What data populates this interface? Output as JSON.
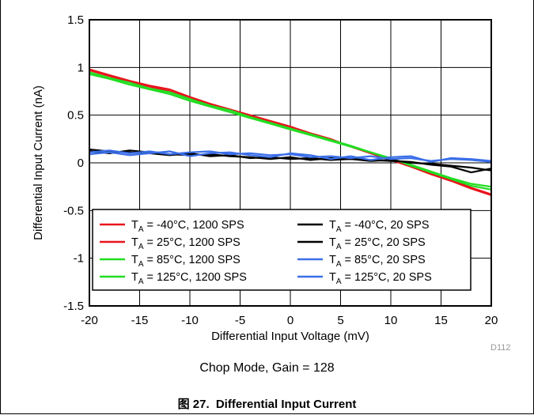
{
  "figure": {
    "caption": "Chop Mode, Gain = 128",
    "label": "图 27.",
    "title": "Differential Input Current",
    "id_tag": "D112"
  },
  "chart_data": {
    "type": "line",
    "title": "",
    "xlabel": "Differential Input Voltage (mV)",
    "ylabel": "Differential Input Current (nA)",
    "xlim": [
      -20,
      20
    ],
    "ylim": [
      -1.5,
      1.5
    ],
    "xticks": [
      -20,
      -15,
      -10,
      -5,
      0,
      5,
      10,
      15,
      20
    ],
    "yticks": [
      -1.5,
      -1,
      -0.5,
      0,
      0.5,
      1,
      1.5
    ],
    "xtick_labels": [
      "-20",
      "-15",
      "-10",
      "-5",
      "0",
      "5",
      "10",
      "15",
      "20"
    ],
    "ytick_labels": [
      "-1.5",
      "-1",
      "-0.5",
      "0",
      "0.5",
      "1",
      "1.5"
    ],
    "grid": true,
    "legend_position": "bottom-center",
    "x": [
      -20,
      -18,
      -16,
      -14,
      -12,
      -10,
      -8,
      -6,
      -4,
      -2,
      0,
      2,
      4,
      6,
      8,
      10,
      12,
      14,
      16,
      18,
      20
    ],
    "series": [
      {
        "name_prefix": "T",
        "name_sub": "A",
        "name_rest": " = -40°C, 1200 SPS",
        "color": "#e8141c",
        "values": [
          0.98,
          0.92,
          0.86,
          0.81,
          0.77,
          0.69,
          0.62,
          0.56,
          0.5,
          0.44,
          0.38,
          0.31,
          0.25,
          0.17,
          0.11,
          0.04,
          -0.03,
          -0.11,
          -0.18,
          -0.26,
          -0.33
        ]
      },
      {
        "name_prefix": "T",
        "name_sub": "A",
        "name_rest": " = 25°C, 1200 SPS",
        "color": "#e8141c",
        "values": [
          0.97,
          0.91,
          0.85,
          0.8,
          0.75,
          0.68,
          0.61,
          0.55,
          0.49,
          0.43,
          0.37,
          0.3,
          0.24,
          0.17,
          0.1,
          0.03,
          -0.04,
          -0.12,
          -0.19,
          -0.27,
          -0.34
        ]
      },
      {
        "name_prefix": "T",
        "name_sub": "A",
        "name_rest": " = 85°C, 1200 SPS",
        "color": "#22dd22",
        "values": [
          0.95,
          0.89,
          0.84,
          0.78,
          0.74,
          0.67,
          0.6,
          0.55,
          0.48,
          0.42,
          0.36,
          0.3,
          0.24,
          0.18,
          0.11,
          0.05,
          -0.03,
          -0.1,
          -0.17,
          -0.24,
          -0.28
        ]
      },
      {
        "name_prefix": "T",
        "name_sub": "A",
        "name_rest": " = 125°C, 1200 SPS",
        "color": "#22dd22",
        "values": [
          0.93,
          0.88,
          0.82,
          0.77,
          0.72,
          0.65,
          0.59,
          0.53,
          0.47,
          0.41,
          0.35,
          0.29,
          0.23,
          0.17,
          0.11,
          0.04,
          -0.02,
          -0.09,
          -0.16,
          -0.22,
          -0.25
        ]
      },
      {
        "name_prefix": "T",
        "name_sub": "A",
        "name_rest": " = -40°C, 20 SPS",
        "color": "#000000",
        "values": [
          0.12,
          0.1,
          0.13,
          0.11,
          0.09,
          0.08,
          0.09,
          0.07,
          0.06,
          0.04,
          0.06,
          0.03,
          0.05,
          0.04,
          0.03,
          0.02,
          0.01,
          -0.02,
          -0.04,
          -0.1,
          -0.06
        ]
      },
      {
        "name_prefix": "T",
        "name_sub": "A",
        "name_rest": " = 25°C, 20 SPS",
        "color": "#000000",
        "values": [
          0.14,
          0.12,
          0.11,
          0.1,
          0.08,
          0.1,
          0.07,
          0.08,
          0.05,
          0.06,
          0.04,
          0.05,
          0.03,
          0.04,
          0.02,
          0.03,
          0.0,
          -0.01,
          -0.03,
          -0.05,
          -0.08
        ]
      },
      {
        "name_prefix": "T",
        "name_sub": "A",
        "name_rest": " = 85°C, 20 SPS",
        "color": "#3b6fe8",
        "values": [
          0.11,
          0.13,
          0.1,
          0.12,
          0.09,
          0.11,
          0.12,
          0.09,
          0.1,
          0.08,
          0.09,
          0.06,
          0.07,
          0.05,
          0.07,
          0.04,
          0.05,
          0.02,
          0.04,
          0.03,
          0.01
        ]
      },
      {
        "name_prefix": "T",
        "name_sub": "A",
        "name_rest": " = 125°C, 20 SPS",
        "color": "#3b6fe8",
        "values": [
          0.09,
          0.11,
          0.08,
          0.1,
          0.12,
          0.07,
          0.1,
          0.11,
          0.08,
          0.06,
          0.1,
          0.08,
          0.04,
          0.07,
          0.03,
          0.06,
          0.07,
          0.01,
          0.05,
          0.04,
          0.02
        ]
      }
    ]
  }
}
